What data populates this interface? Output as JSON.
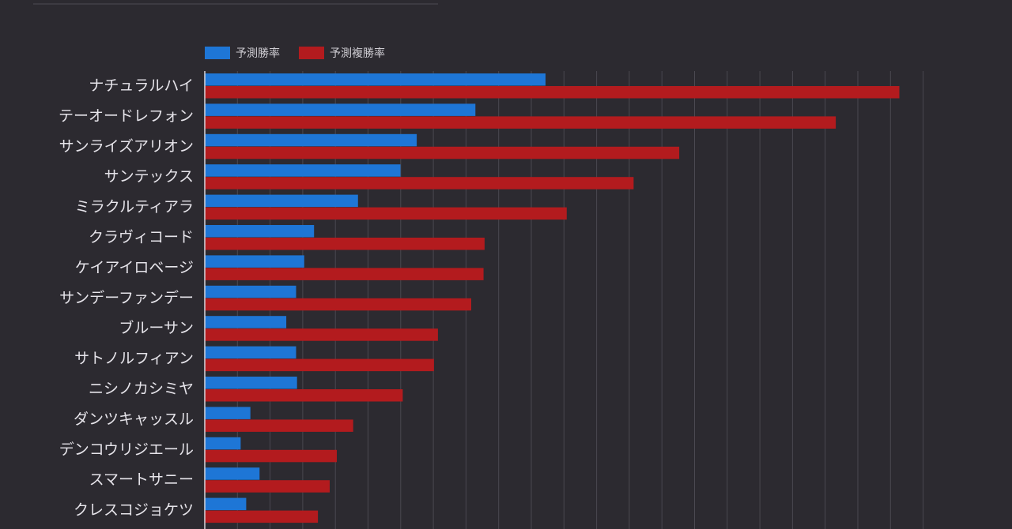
{
  "chart_data": {
    "type": "bar",
    "orientation": "horizontal",
    "categories": [
      "ナチュラルハイ",
      "テーオードレフォン",
      "サンライズアリオン",
      "サンテックス",
      "ミラクルティアラ",
      "クラヴィコード",
      "ケイアイロベージ",
      "サンデーファンデー",
      "ブルーサン",
      "サトノルフィアン",
      "ニシノカシミヤ",
      "ダンツキャッスル",
      "デンコウリジエール",
      "スマートサニー",
      "クレスコジョケツ"
    ],
    "series": [
      {
        "name": "予測勝率",
        "color": "#1e76d6",
        "values": [
          10.45,
          8.3,
          6.5,
          6.0,
          4.7,
          3.35,
          3.05,
          2.8,
          2.5,
          2.8,
          2.83,
          1.4,
          1.1,
          1.68,
          1.27
        ]
      },
      {
        "name": "予測複勝率",
        "color": "#b31b1e",
        "values": [
          21.3,
          19.35,
          14.55,
          13.15,
          11.1,
          8.58,
          8.55,
          8.17,
          7.15,
          7.03,
          6.07,
          4.55,
          4.05,
          3.83,
          3.47
        ]
      }
    ],
    "xlim": [
      0,
      22.5
    ],
    "grid": true,
    "legend_position": "top-left",
    "xlabel": "",
    "ylabel": ""
  }
}
